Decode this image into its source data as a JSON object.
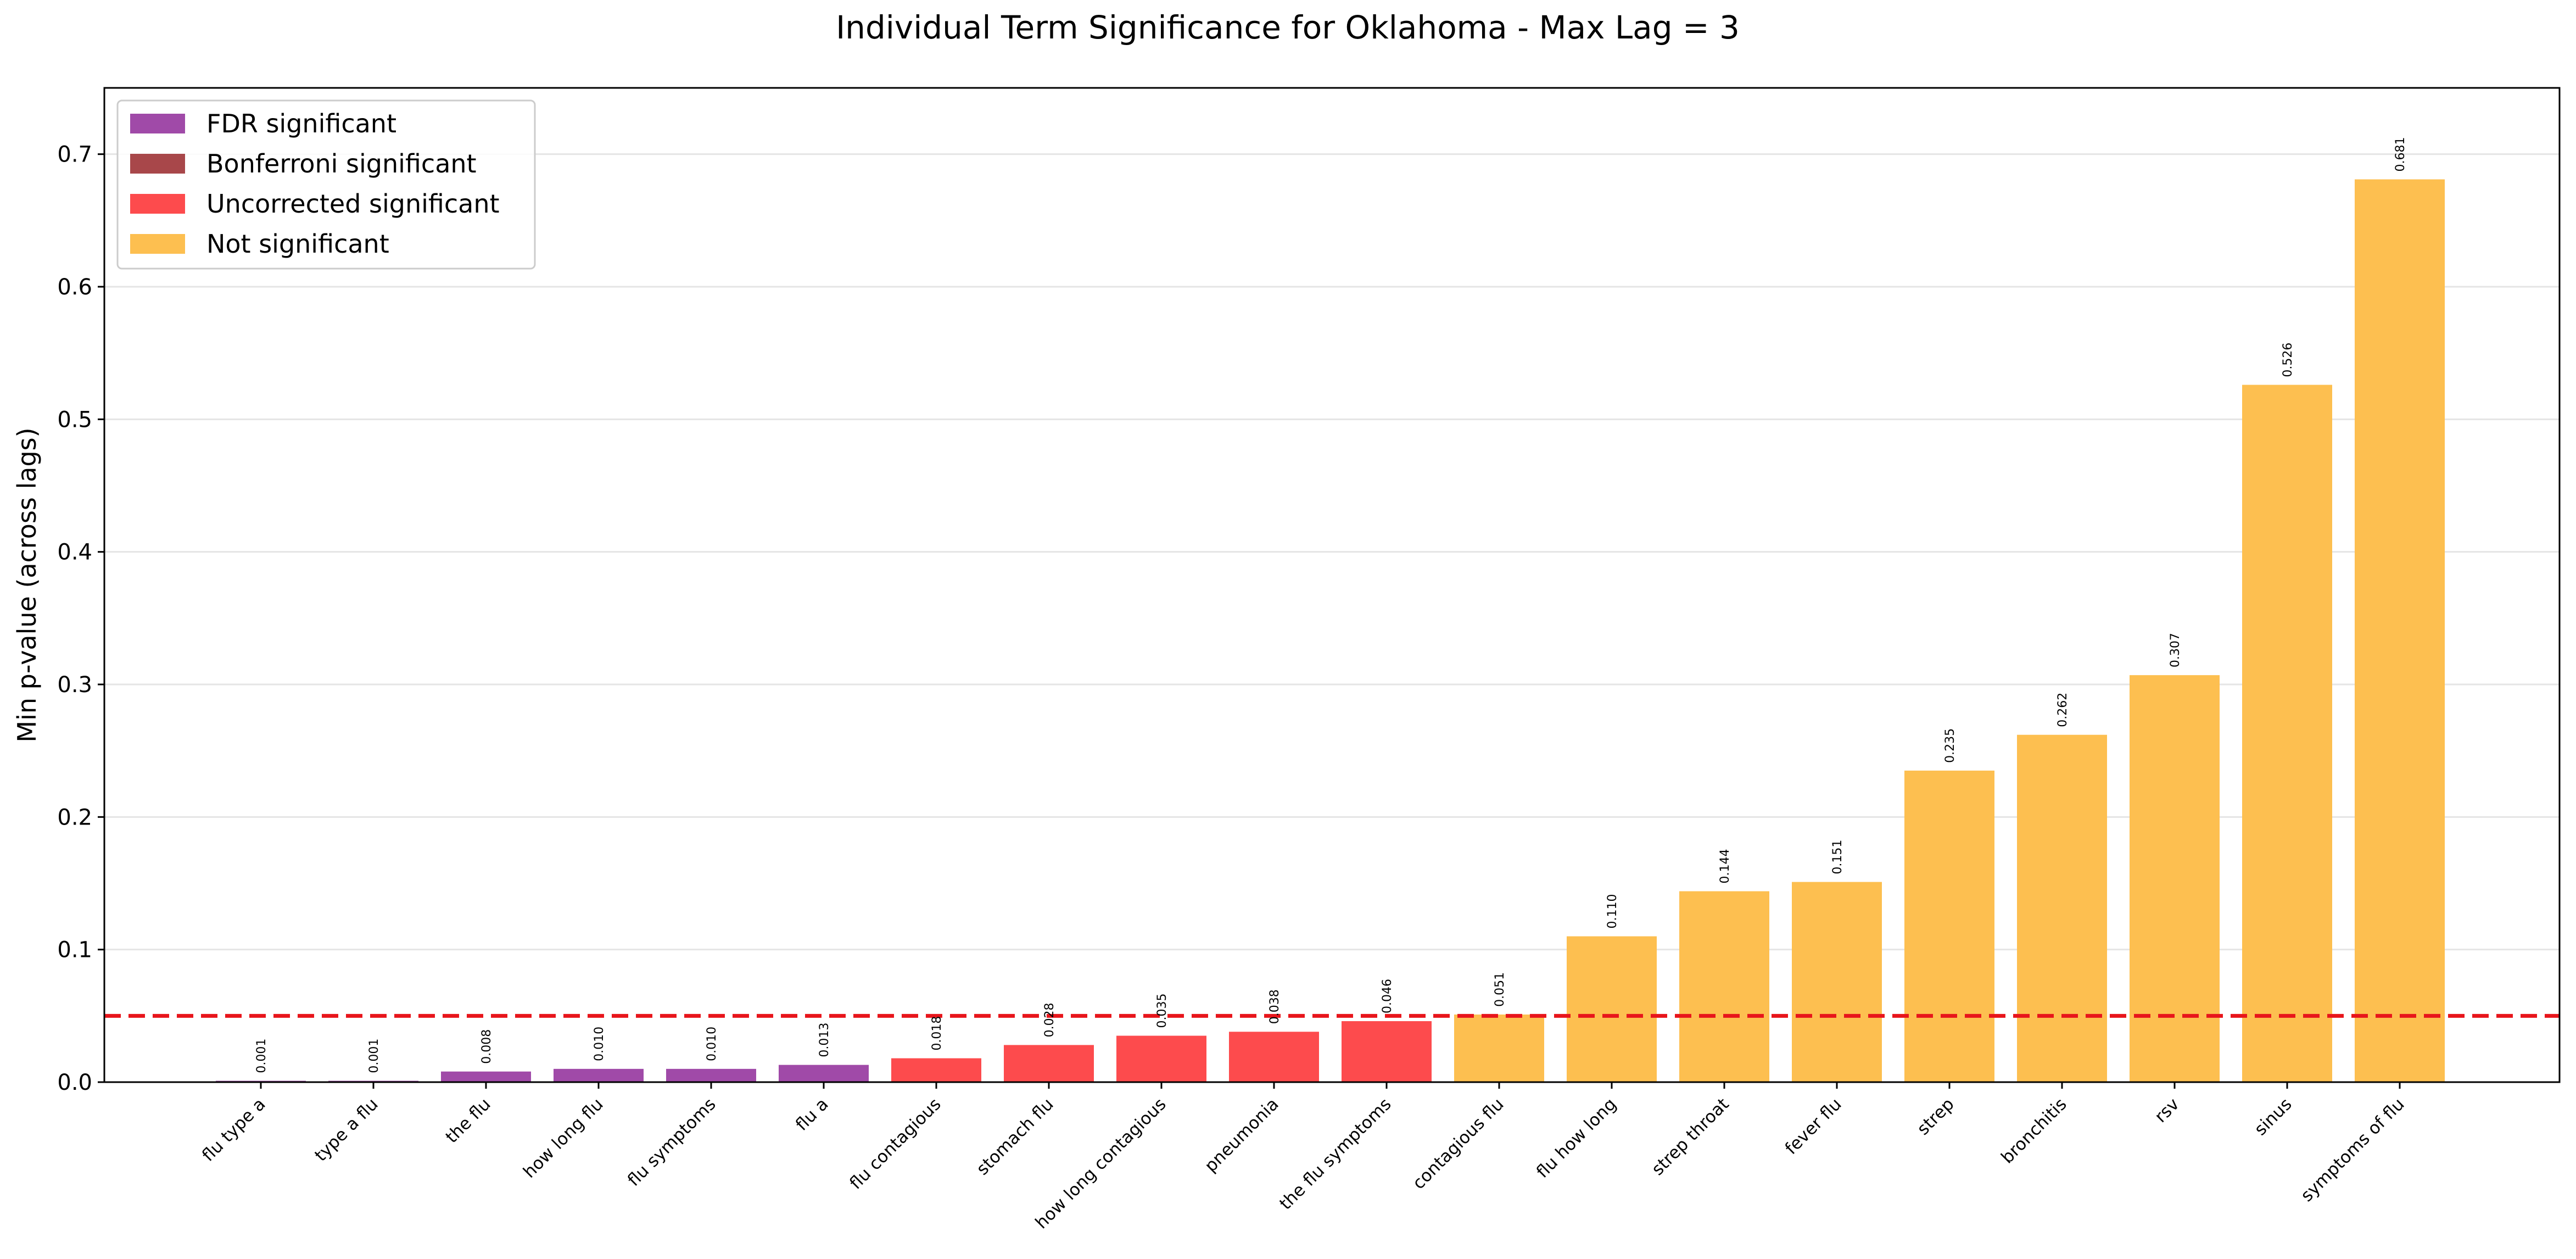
{
  "chart_data": {
    "type": "bar",
    "title": "Individual Term Significance for Oklahoma - Max Lag = 3",
    "xlabel": "",
    "ylabel": "Min p-value (across lags)",
    "ylim": [
      0,
      0.75
    ],
    "yticks": [
      "0.0",
      "0.1",
      "0.2",
      "0.3",
      "0.4",
      "0.5",
      "0.6",
      "0.7"
    ],
    "grid": "horizontal",
    "legend_position": "top-left",
    "threshold": 0.05,
    "threshold_color": "#e8151b",
    "categories": [
      "flu type a",
      "type a flu",
      "the flu",
      "how long flu",
      "flu symptoms",
      "flu a",
      "flu contagious",
      "stomach flu",
      "how long contagious",
      "pneumonia",
      "the flu symptoms",
      "contagious flu",
      "flu how long",
      "strep throat",
      "fever flu",
      "strep",
      "bronchitis",
      "rsv",
      "sinus",
      "symptoms of flu"
    ],
    "values": [
      0.001,
      0.001,
      0.008,
      0.01,
      0.01,
      0.013,
      0.018,
      0.028,
      0.035,
      0.038,
      0.046,
      0.051,
      0.11,
      0.144,
      0.151,
      0.235,
      0.262,
      0.307,
      0.526,
      0.681
    ],
    "value_labels": [
      "0.001",
      "0.001",
      "0.008",
      "0.010",
      "0.010",
      "0.013",
      "0.018",
      "0.028",
      "0.035",
      "0.038",
      "0.046",
      "0.051",
      "0.110",
      "0.144",
      "0.151",
      "0.235",
      "0.262",
      "0.307",
      "0.526",
      "0.681"
    ],
    "bar_groups": [
      "fdr",
      "fdr",
      "fdr",
      "fdr",
      "fdr",
      "fdr",
      "uncorrected",
      "uncorrected",
      "uncorrected",
      "uncorrected",
      "uncorrected",
      "not",
      "not",
      "not",
      "not",
      "not",
      "not",
      "not",
      "not",
      "not"
    ],
    "legend": [
      {
        "key": "fdr",
        "label": "FDR significant",
        "color": "#a04aa8"
      },
      {
        "key": "bonferroni",
        "label": "Bonferroni significant",
        "color": "#a8474a"
      },
      {
        "key": "uncorrected",
        "label": "Uncorrected significant",
        "color": "#fd4b4d"
      },
      {
        "key": "not",
        "label": "Not significant",
        "color": "#fdbf50"
      }
    ]
  }
}
